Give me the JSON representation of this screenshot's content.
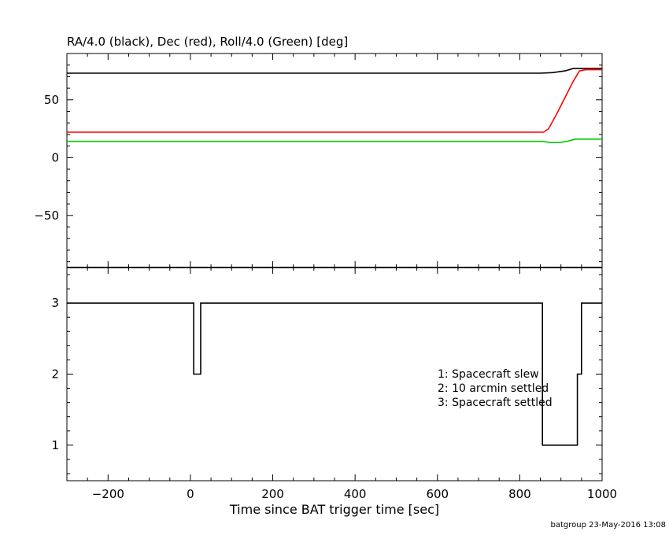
{
  "chart_data": [
    {
      "type": "line",
      "title": "RA/4.0 (black), Dec (red), Roll/4.0 (Green) [deg]",
      "xlim": [
        -300,
        1000
      ],
      "ylim": [
        -95,
        90
      ],
      "yticks": [
        -50,
        0,
        50
      ],
      "series": [
        {
          "color": "#000000",
          "x": [
            -300,
            850,
            880,
            910,
            930,
            950,
            1000
          ],
          "y": [
            73,
            73,
            73.5,
            75,
            77,
            77,
            77
          ]
        },
        {
          "color": "#ff0000",
          "x": [
            -300,
            858,
            870,
            890,
            910,
            930,
            945,
            960,
            1000
          ],
          "y": [
            22,
            22,
            25,
            38,
            52,
            66,
            75,
            76,
            76
          ]
        },
        {
          "color": "#00cc00",
          "x": [
            -300,
            855,
            875,
            895,
            915,
            935,
            955,
            1000
          ],
          "y": [
            14,
            14,
            13,
            13,
            14,
            16,
            16,
            16
          ]
        }
      ]
    },
    {
      "type": "line",
      "xlabel": "Time since BAT trigger time [sec]",
      "xlim": [
        -300,
        1000
      ],
      "ylim": [
        0.5,
        3.5
      ],
      "xticks": [
        -200,
        0,
        200,
        400,
        600,
        800,
        1000
      ],
      "yticks": [
        1,
        2,
        3
      ],
      "series": [
        {
          "color": "#000000",
          "step": true,
          "x": [
            -300,
            8,
            8,
            25,
            25,
            855,
            855,
            940,
            940,
            950,
            950,
            1000
          ],
          "y": [
            3,
            3,
            2,
            2,
            3,
            3,
            1,
            1,
            2,
            2,
            3,
            3
          ]
        }
      ],
      "legend": [
        "1: Spacecraft slew",
        "2: 10 arcmin settled",
        "3: Spacecraft settled"
      ]
    }
  ],
  "footer": "batgroup 23-May-2016 13:08"
}
